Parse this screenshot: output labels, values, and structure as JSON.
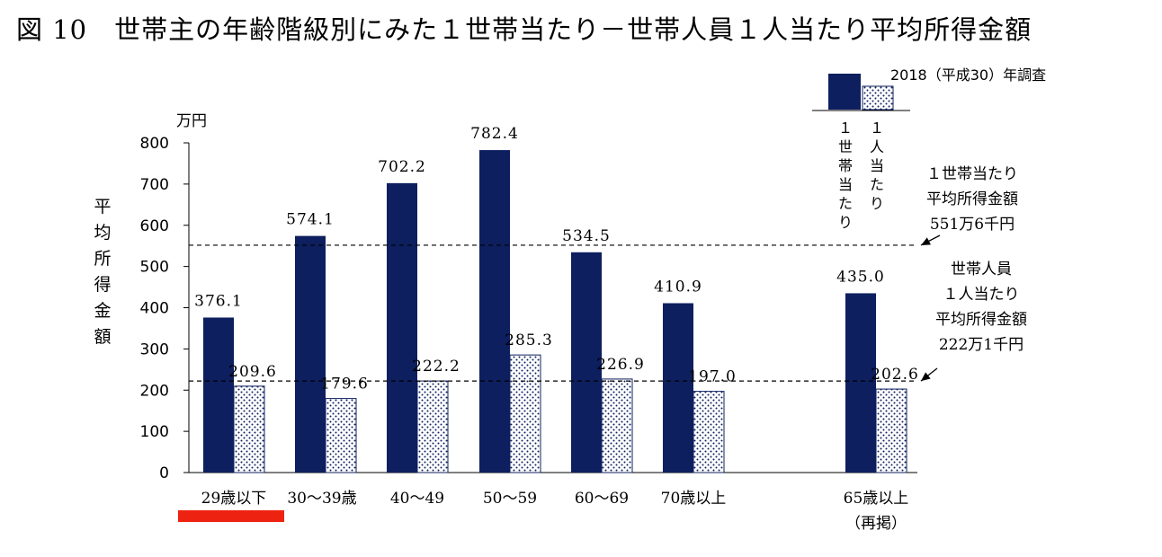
{
  "title": "図 10　世帯主の年齢階級別にみた１世帯当たり－世帯人員１人当たり平均所得金額",
  "chart_data": {
    "type": "bar",
    "title": "図 10　世帯主の年齢階級別にみた１世帯当たり－世帯人員１人当たり平均所得金額",
    "ylabel": "平均所得金額",
    "unit": "万円",
    "ylim": [
      0,
      800
    ],
    "yticks": [
      0,
      100,
      200,
      300,
      400,
      500,
      600,
      700,
      800
    ],
    "categories": [
      "29歳以下",
      "30～39歳",
      "40～49",
      "50～59",
      "60～69",
      "70歳以上",
      "65歳以上（再掲）"
    ],
    "series": [
      {
        "name": "１世帯当たり",
        "values": [
          376.1,
          574.1,
          702.2,
          782.4,
          534.5,
          410.9,
          435.0
        ],
        "labels": [
          "376.1",
          "574.1",
          "702.2",
          "782.4",
          "534.5",
          "410.9",
          "435.0"
        ],
        "color": "#0d1f5e"
      },
      {
        "name": "１人当たり",
        "values": [
          209.6,
          179.6,
          222.2,
          285.3,
          226.9,
          197.0,
          202.6
        ],
        "labels": [
          "209.6",
          "179.6",
          "222.2",
          "285.3",
          "226.9",
          "197.0",
          "202.6"
        ],
        "color": "#ffffff",
        "pattern": "dots"
      }
    ],
    "reference_lines": [
      {
        "value": 551.6,
        "lines": [
          "１世帯当たり",
          "平均所得金額",
          "551万6千円"
        ]
      },
      {
        "value": 222.1,
        "lines": [
          "世帯人員",
          "１人当たり",
          "平均所得金額",
          "222万1千円"
        ]
      }
    ],
    "legend": {
      "placement": "top-right",
      "survey": "2018（平成30）年調査"
    },
    "grid": false,
    "highlighted_category": "29歳以下",
    "highlight_color": "#ee2211"
  }
}
